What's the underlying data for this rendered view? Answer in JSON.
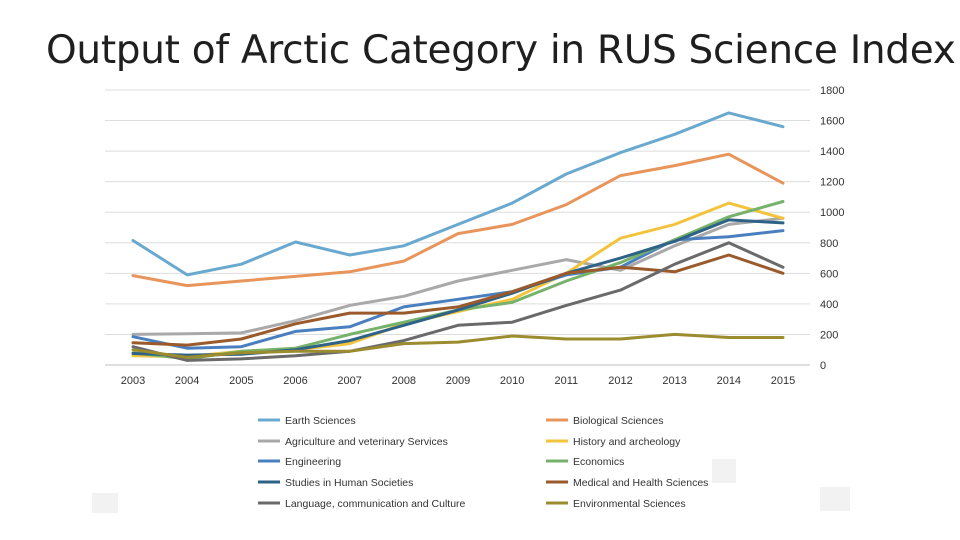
{
  "slide": {
    "title": "Output of Arctic Category in RUS Science Index"
  },
  "chart_data": {
    "type": "line",
    "title": "Output of Arctic Category in RUS Science Index",
    "xlabel": "",
    "ylabel": "",
    "ylim": [
      0,
      1800
    ],
    "yticks": [
      0,
      200,
      400,
      600,
      800,
      1000,
      1200,
      1400,
      1600,
      1800
    ],
    "y_axis_position": "right",
    "grid": true,
    "legend_position": "bottom",
    "x": [
      "2003",
      "2004",
      "2005",
      "2006",
      "2007",
      "2008",
      "2009",
      "2010",
      "2011",
      "2012",
      "2013",
      "2014",
      "2015"
    ],
    "series": [
      {
        "name": "Earth Sciences",
        "color": "#6aa9cf",
        "values": [
          815,
          590,
          660,
          805,
          720,
          780,
          920,
          1060,
          1250,
          1390,
          1510,
          1650,
          1560
        ]
      },
      {
        "name": "Biological Sciences",
        "color": "#e8955b",
        "values": [
          585,
          520,
          550,
          580,
          610,
          680,
          860,
          920,
          1050,
          1240,
          1305,
          1380,
          1190
        ]
      },
      {
        "name": "Agriculture and veterinary Services",
        "color": "#a9a9a9",
        "values": [
          200,
          205,
          210,
          290,
          390,
          450,
          550,
          620,
          690,
          620,
          780,
          920,
          960
        ]
      },
      {
        "name": "History and archeology",
        "color": "#f2c33d",
        "values": [
          60,
          55,
          90,
          100,
          140,
          270,
          350,
          430,
          600,
          830,
          920,
          1060,
          960
        ]
      },
      {
        "name": "Engineering",
        "color": "#4a7fbf",
        "values": [
          185,
          110,
          120,
          220,
          250,
          380,
          430,
          480,
          590,
          640,
          820,
          840,
          880
        ]
      },
      {
        "name": "Economics",
        "color": "#76b26a",
        "values": [
          80,
          40,
          90,
          110,
          200,
          280,
          360,
          410,
          550,
          670,
          820,
          970,
          1070
        ]
      },
      {
        "name": "Studies in Human Societies",
        "color": "#2e6286",
        "values": [
          75,
          65,
          70,
          100,
          160,
          260,
          360,
          470,
          600,
          700,
          810,
          950,
          930
        ]
      },
      {
        "name": "Medical and Health Sciences",
        "color": "#9a5a2c",
        "values": [
          145,
          130,
          170,
          270,
          340,
          340,
          380,
          480,
          600,
          640,
          610,
          720,
          600
        ]
      },
      {
        "name": "Language, communication and Culture",
        "color": "#6a6a6a",
        "values": [
          120,
          30,
          40,
          60,
          90,
          160,
          260,
          280,
          390,
          490,
          660,
          800,
          640
        ]
      },
      {
        "name": "Environmental Sciences",
        "color": "#9b8c2f",
        "values": [
          100,
          50,
          80,
          90,
          90,
          140,
          150,
          190,
          170,
          170,
          200,
          180,
          180
        ]
      }
    ]
  }
}
